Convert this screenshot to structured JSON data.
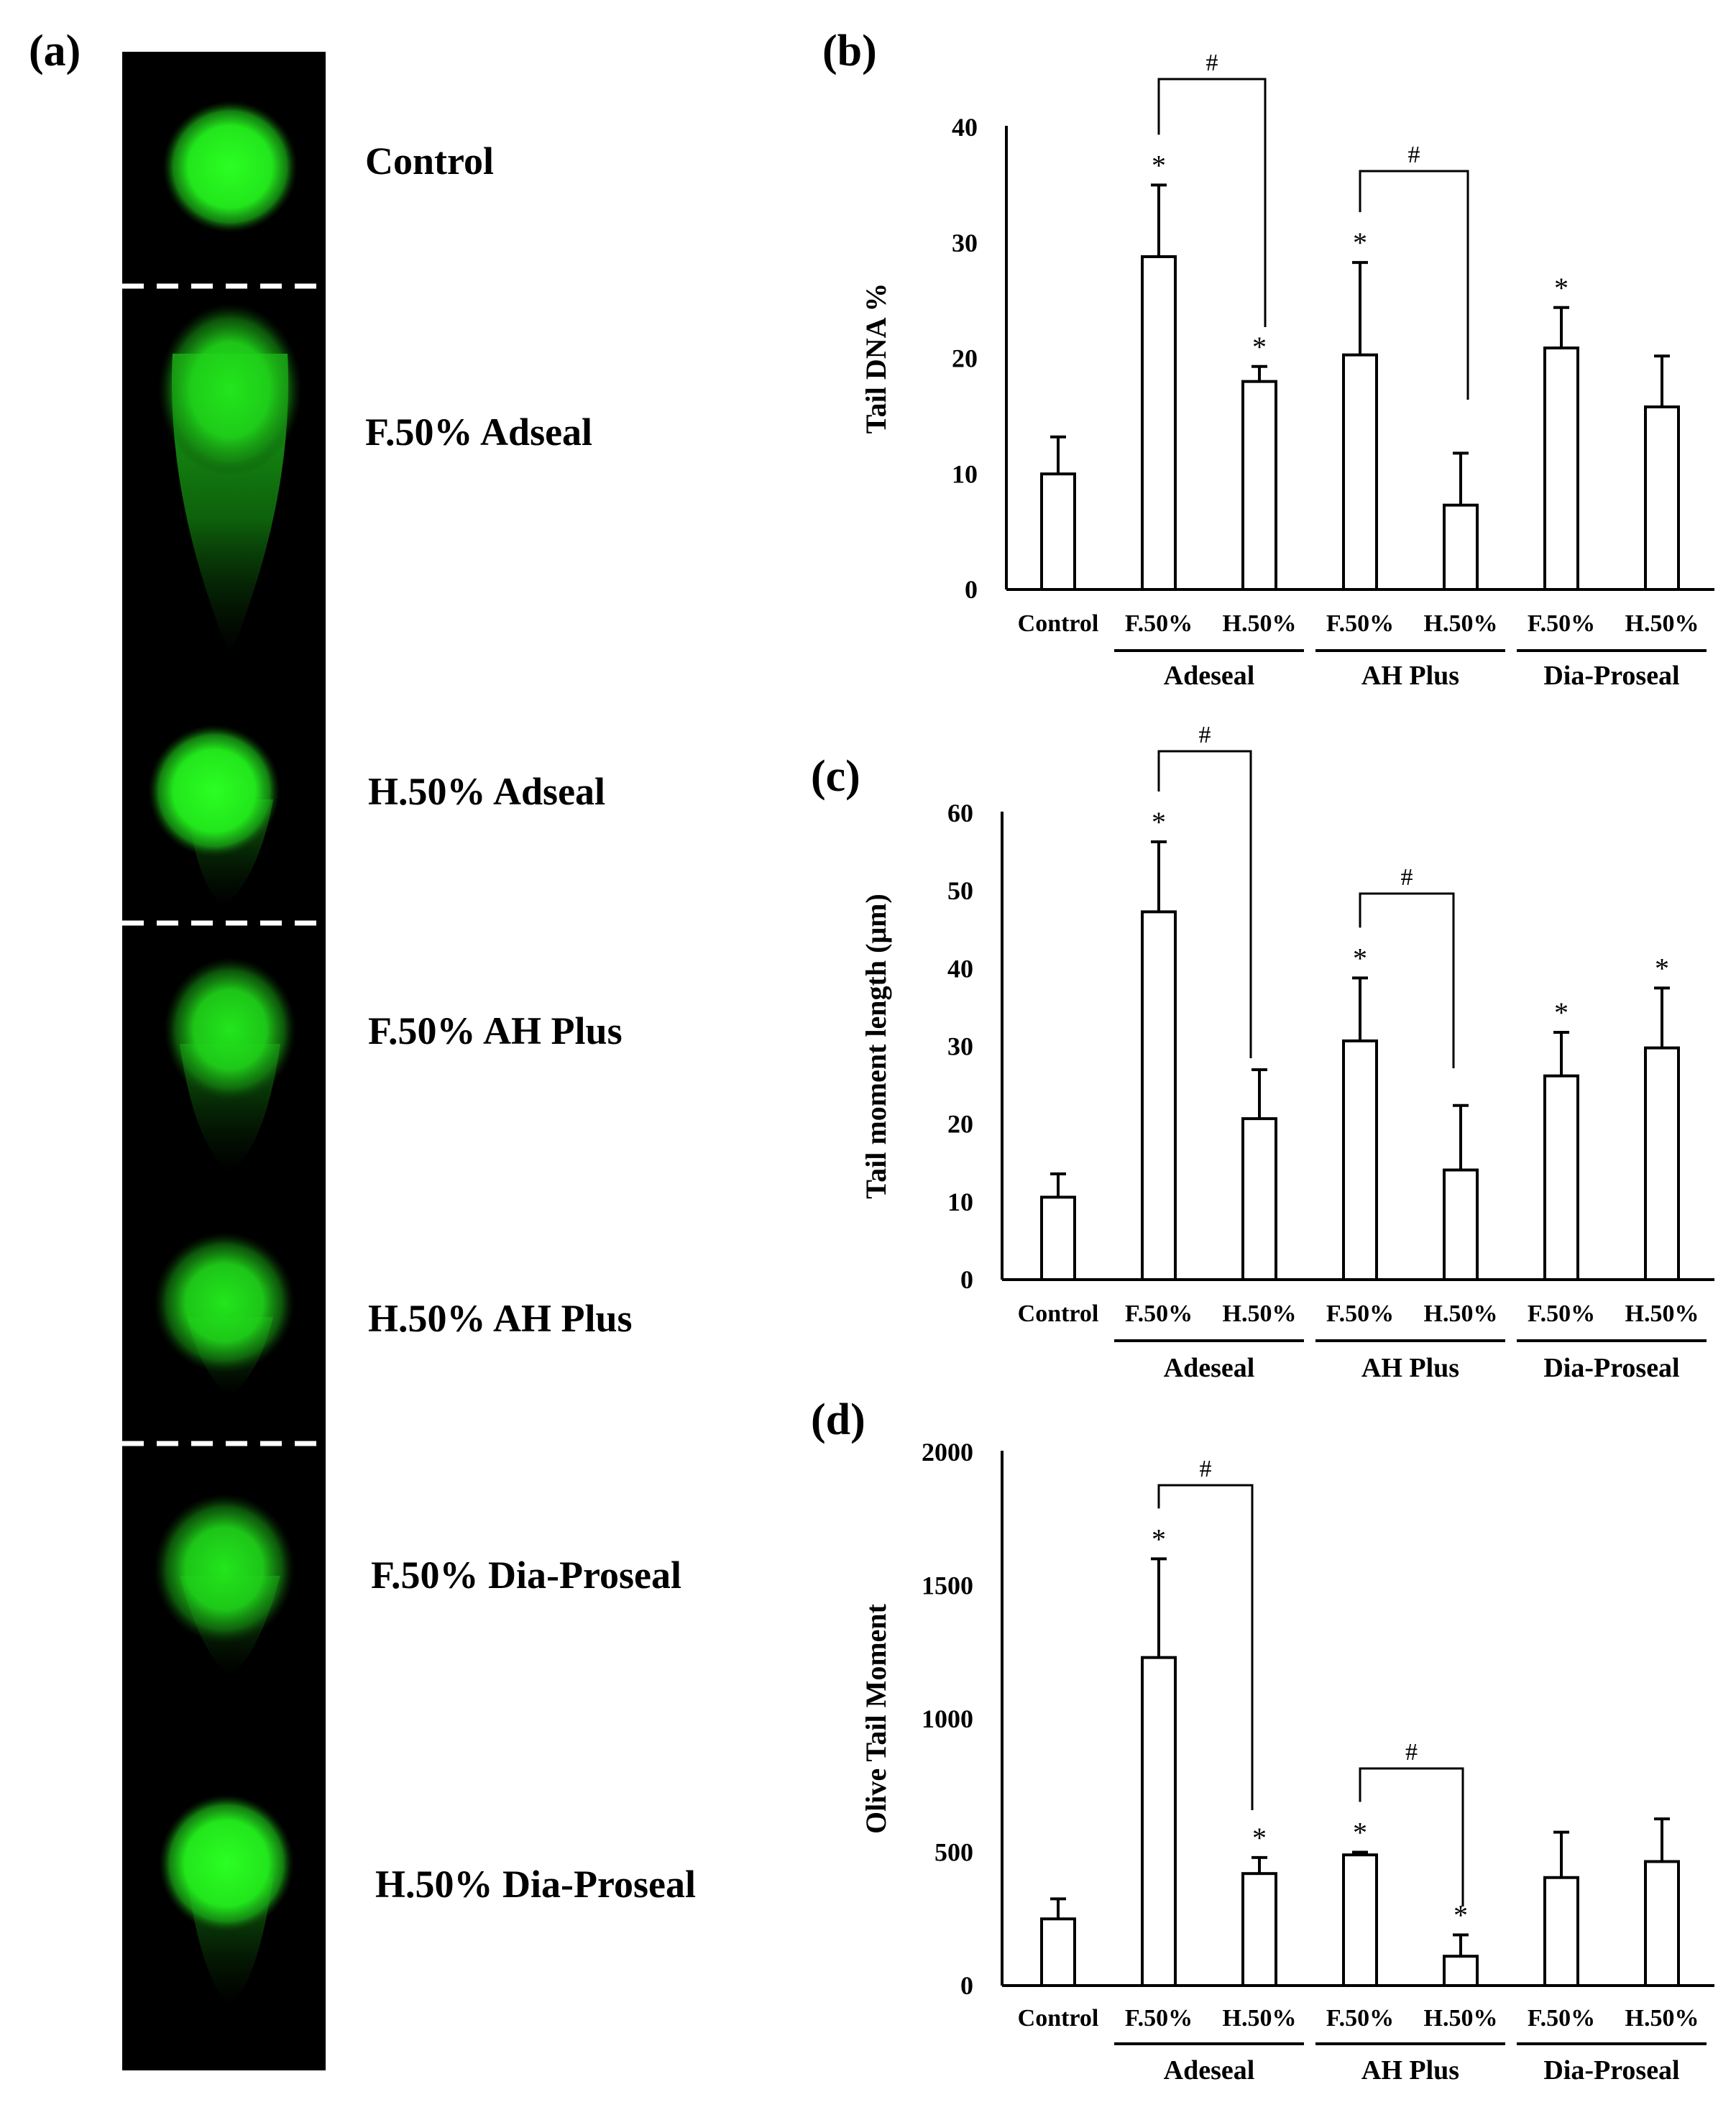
{
  "panel_labels": {
    "a": "(a)",
    "b": "(b)",
    "c": "(c)",
    "d": "(d)"
  },
  "comet_images": [
    {
      "label": "Control"
    },
    {
      "label": "F.50% Adseal"
    },
    {
      "label": "H.50% Adseal"
    },
    {
      "label": "F.50% AH Plus"
    },
    {
      "label": "H.50% AH Plus"
    },
    {
      "label": "F.50% Dia-Proseal"
    },
    {
      "label": "H.50% Dia-Proseal"
    }
  ],
  "colors": {
    "comet": "#22e61c",
    "background": "#000000"
  },
  "chart_data": [
    {
      "type": "bar",
      "panel": "b",
      "title": "",
      "ylabel": "Tail DNA %",
      "xlabel": "",
      "ylim": [
        0,
        40
      ],
      "yticks": [
        "0",
        "10",
        "20",
        "30",
        "40"
      ],
      "categories": [
        "Control",
        "F.50%",
        "H.50%",
        "F.50%",
        "H.50%",
        "F.50%",
        "H.50%"
      ],
      "groups": [
        "Adeseal",
        "AH Plus",
        "Dia-Proseal"
      ],
      "values": [
        10,
        28.8,
        18,
        20.3,
        7.3,
        20.9,
        15.8
      ],
      "errors": [
        3.2,
        6.2,
        1.3,
        8,
        4.5,
        3.5,
        4.4
      ],
      "significance": [
        "",
        "*",
        "*",
        "*",
        "",
        "*",
        ""
      ],
      "comparisons": [
        {
          "from": 1,
          "to": 2,
          "label": "#"
        },
        {
          "from": 3,
          "to": 4,
          "label": "#"
        }
      ]
    },
    {
      "type": "bar",
      "panel": "c",
      "title": "",
      "ylabel": "Tail moment length (μm)",
      "xlabel": "",
      "ylim": [
        0,
        60
      ],
      "yticks": [
        "0",
        "10",
        "20",
        "30",
        "40",
        "50",
        "60"
      ],
      "categories": [
        "Control",
        "F.50%",
        "H.50%",
        "F.50%",
        "H.50%",
        "F.50%",
        "H.50%"
      ],
      "groups": [
        "Adeseal",
        "AH Plus",
        "Dia-Proseal"
      ],
      "values": [
        10.6,
        47.3,
        20.7,
        30.7,
        14.1,
        26.2,
        29.8
      ],
      "errors": [
        3,
        9,
        6.3,
        8.1,
        8.3,
        5.6,
        7.7
      ],
      "significance": [
        "",
        "*",
        "",
        "*",
        "",
        "*",
        "*"
      ],
      "comparisons": [
        {
          "from": 1,
          "to": 2,
          "label": "#"
        },
        {
          "from": 3,
          "to": 4,
          "label": "#"
        }
      ]
    },
    {
      "type": "bar",
      "panel": "d",
      "title": "",
      "ylabel": "Olive Tail Moment",
      "xlabel": "",
      "ylim": [
        0,
        2000
      ],
      "yticks": [
        "0",
        "500",
        "1000",
        "1500",
        "2000"
      ],
      "categories": [
        "Control",
        "F.50%",
        "H.50%",
        "F.50%",
        "H.50%",
        "F.50%",
        "H.50%"
      ],
      "groups": [
        "Adeseal",
        "AH Plus",
        "Dia-Proseal"
      ],
      "values": [
        250,
        1230,
        420,
        490,
        110,
        405,
        465
      ],
      "errors": [
        75,
        370,
        60,
        10,
        80,
        170,
        160
      ],
      "significance": [
        "",
        "*",
        "*",
        "*",
        "*",
        "",
        ""
      ],
      "comparisons": [
        {
          "from": 1,
          "to": 2,
          "label": "#"
        },
        {
          "from": 3,
          "to": 4,
          "label": "#"
        }
      ]
    }
  ]
}
